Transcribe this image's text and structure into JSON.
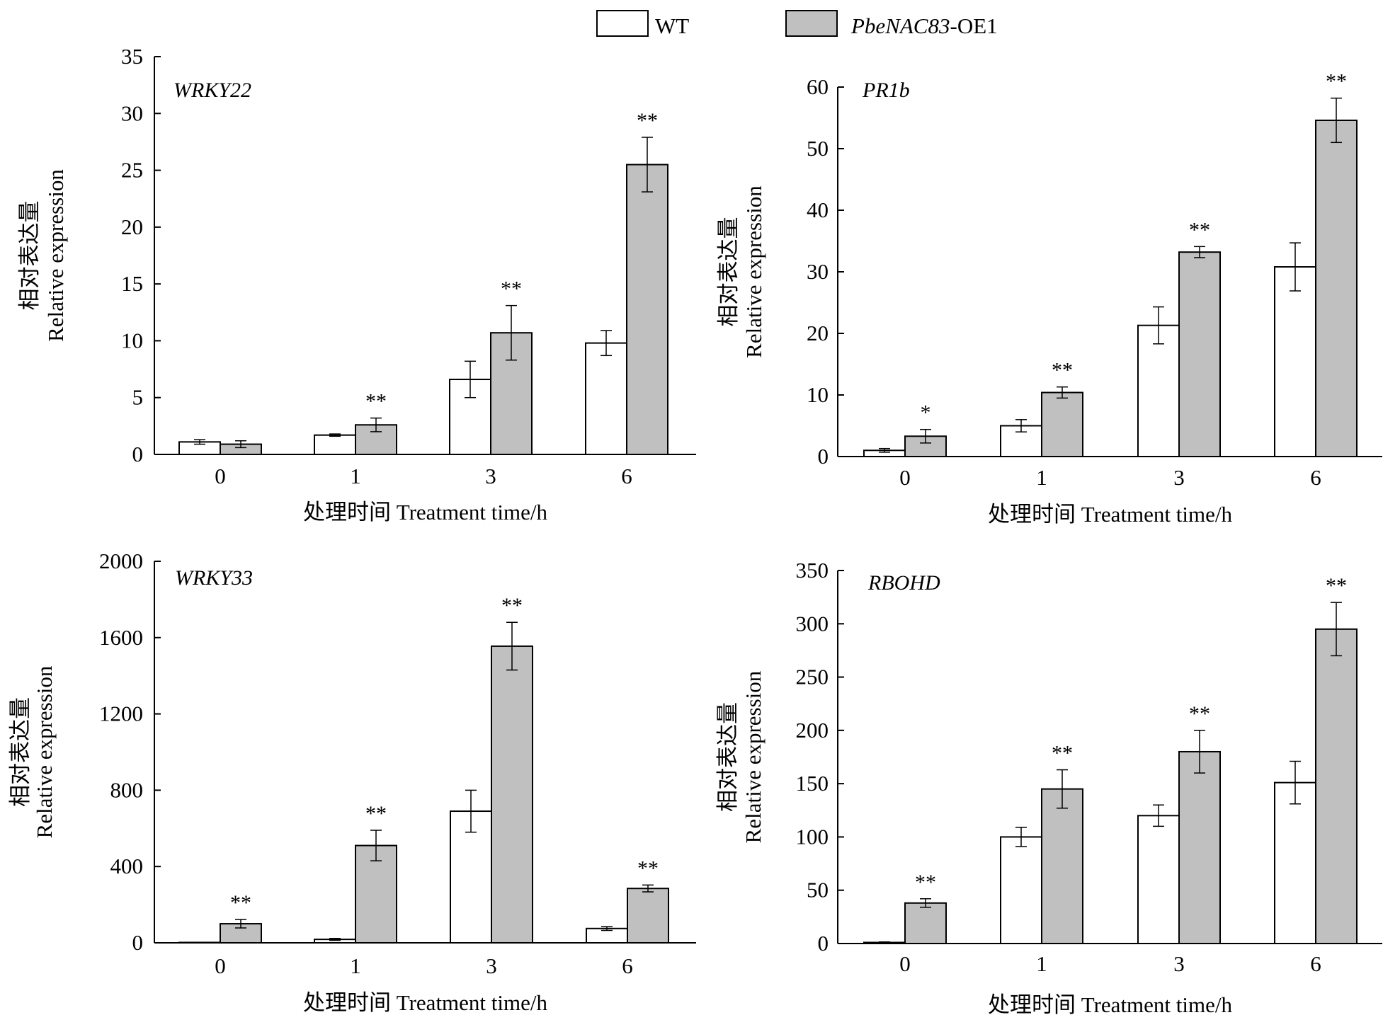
{
  "legend": {
    "wt_label": "WT",
    "oe_italic": "PbeNAC83",
    "oe_suffix": "-OE1"
  },
  "colors": {
    "wt_fill": "#ffffff",
    "oe_fill": "#c0c0c0",
    "stroke": "#000000"
  },
  "chart_data": [
    {
      "type": "bar",
      "title": "WRKY22",
      "categories": [
        "0",
        "1",
        "3",
        "6"
      ],
      "xlabel": "处理时间 Treatment time/h",
      "ylabel_cn": "相对表达量",
      "ylabel_en": "Relative expression",
      "ylim": [
        0,
        35
      ],
      "yticks": [
        0,
        5,
        10,
        15,
        20,
        25,
        30,
        35
      ],
      "series": [
        {
          "name": "WT",
          "values": [
            1.1,
            1.7,
            6.6,
            9.8
          ],
          "errors": [
            0.2,
            0.1,
            1.6,
            1.1
          ]
        },
        {
          "name": "PbeNAC83-OE1",
          "values": [
            0.9,
            2.6,
            10.7,
            25.5
          ],
          "errors": [
            0.3,
            0.6,
            2.4,
            2.4
          ]
        }
      ],
      "significance": [
        "",
        "**",
        "**",
        "**"
      ]
    },
    {
      "type": "bar",
      "title": "PR1b",
      "categories": [
        "0",
        "1",
        "3",
        "6"
      ],
      "xlabel": "处理时间 Treatment time/h",
      "ylabel_cn": "相对表达量",
      "ylabel_en": "Relative expression",
      "ylim": [
        0,
        60
      ],
      "yticks": [
        0,
        10,
        20,
        30,
        40,
        50,
        60
      ],
      "series": [
        {
          "name": "WT",
          "values": [
            1.0,
            5.0,
            21.3,
            30.8
          ],
          "errors": [
            0.3,
            1.0,
            3.0,
            3.9
          ]
        },
        {
          "name": "PbeNAC83-OE1",
          "values": [
            3.3,
            10.4,
            33.2,
            54.6
          ],
          "errors": [
            1.1,
            0.9,
            0.9,
            3.6
          ]
        }
      ],
      "significance": [
        "*",
        "**",
        "**",
        "**"
      ]
    },
    {
      "type": "bar",
      "title": "WRKY33",
      "categories": [
        "0",
        "1",
        "3",
        "6"
      ],
      "xlabel": "处理时间 Treatment time/h",
      "ylabel_cn": "相对表达量",
      "ylabel_en": "Relative expression",
      "ylim": [
        0,
        2000
      ],
      "yticks": [
        0,
        400,
        800,
        1200,
        1600,
        2000
      ],
      "series": [
        {
          "name": "WT",
          "values": [
            2,
            18,
            690,
            75
          ],
          "errors": [
            1,
            5,
            110,
            10
          ]
        },
        {
          "name": "PbeNAC83-OE1",
          "values": [
            100,
            510,
            1555,
            285
          ],
          "errors": [
            22,
            80,
            125,
            18
          ]
        }
      ],
      "significance": [
        "**",
        "**",
        "**",
        "**"
      ]
    },
    {
      "type": "bar",
      "title": "RBOHD",
      "categories": [
        "0",
        "1",
        "3",
        "6"
      ],
      "xlabel": "处理时间 Treatment time/h",
      "ylabel_cn": "相对表达量",
      "ylabel_en": "Relative expression",
      "ylim": [
        0,
        350
      ],
      "yticks": [
        0,
        50,
        100,
        150,
        200,
        250,
        300,
        350
      ],
      "series": [
        {
          "name": "WT",
          "values": [
            1,
            100,
            120,
            151
          ],
          "errors": [
            0.5,
            9,
            10,
            20
          ]
        },
        {
          "name": "PbeNAC83-OE1",
          "values": [
            38,
            145,
            180,
            295
          ],
          "errors": [
            4,
            18,
            20,
            25
          ]
        }
      ],
      "significance": [
        "**",
        "**",
        "**",
        "**"
      ]
    }
  ]
}
